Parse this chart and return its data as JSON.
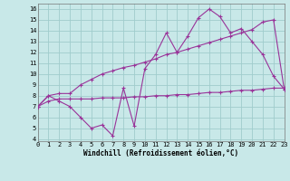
{
  "xlabel": "Windchill (Refroidissement éolien,°C)",
  "bg_color": "#c8e8e8",
  "grid_color": "#a0cccc",
  "line_color": "#993399",
  "x": [
    0,
    1,
    2,
    3,
    4,
    5,
    6,
    7,
    8,
    9,
    10,
    11,
    12,
    13,
    14,
    15,
    16,
    17,
    18,
    19,
    20,
    21,
    22,
    23
  ],
  "y_main": [
    7.0,
    8.0,
    7.5,
    7.0,
    6.0,
    5.0,
    5.3,
    4.3,
    8.7,
    5.2,
    10.5,
    11.8,
    13.8,
    12.0,
    13.5,
    15.2,
    16.0,
    15.3,
    13.8,
    14.2,
    13.0,
    11.8,
    9.8,
    8.6
  ],
  "y_upper": [
    7.0,
    8.0,
    8.2,
    8.2,
    9.0,
    9.5,
    10.0,
    10.3,
    10.6,
    10.8,
    11.1,
    11.4,
    11.8,
    12.0,
    12.3,
    12.6,
    12.9,
    13.2,
    13.5,
    13.8,
    14.1,
    14.8,
    15.0,
    8.6
  ],
  "y_lower": [
    7.0,
    7.5,
    7.7,
    7.7,
    7.7,
    7.7,
    7.8,
    7.8,
    7.8,
    7.9,
    7.9,
    8.0,
    8.0,
    8.1,
    8.1,
    8.2,
    8.3,
    8.3,
    8.4,
    8.5,
    8.5,
    8.6,
    8.7,
    8.7
  ],
  "xlim": [
    0,
    23
  ],
  "ylim": [
    3.8,
    16.5
  ],
  "yticks": [
    4,
    5,
    6,
    7,
    8,
    9,
    10,
    11,
    12,
    13,
    14,
    15,
    16
  ],
  "xticks": [
    0,
    1,
    2,
    3,
    4,
    5,
    6,
    7,
    8,
    9,
    10,
    11,
    12,
    13,
    14,
    15,
    16,
    17,
    18,
    19,
    20,
    21,
    22,
    23
  ],
  "figsize": [
    3.2,
    2.0
  ],
  "dpi": 100
}
